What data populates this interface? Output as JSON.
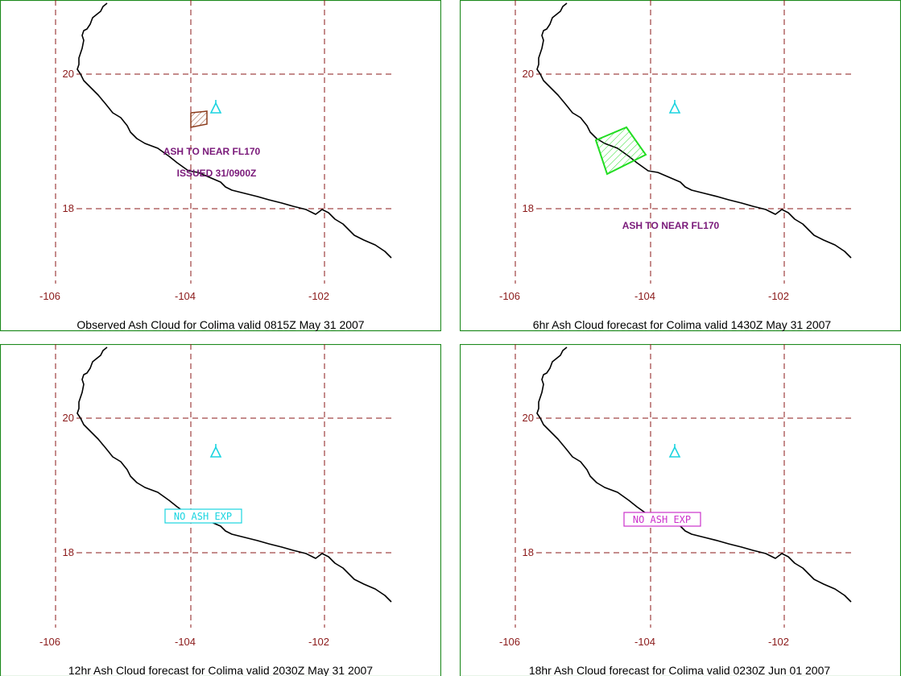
{
  "panels": [
    {
      "caption": "Observed Ash Cloud for Colima valid 0815Z May 31 2007",
      "lat_labels": [
        "20",
        "18"
      ],
      "lon_labels": [
        "-106",
        "-104",
        "-102"
      ],
      "annotations": [
        "ASH TO NEAR FL170",
        "ISSUED 31/0900Z"
      ],
      "ash_color": "#8b3a1a"
    },
    {
      "caption": "6hr Ash Cloud forecast for Colima valid 1430Z May 31 2007",
      "lat_labels": [
        "20",
        "18"
      ],
      "lon_labels": [
        "-106",
        "-104",
        "-102"
      ],
      "annotations": [
        "ASH TO NEAR FL170"
      ],
      "ash_color": "#22dd22"
    },
    {
      "caption": "12hr Ash Cloud forecast for Colima valid 2030Z May 31 2007",
      "lat_labels": [
        "20",
        "18"
      ],
      "lon_labels": [
        "-106",
        "-104",
        "-102"
      ],
      "status_box": "NO ASH EXP",
      "box_color": "#1ad4e0"
    },
    {
      "caption": "18hr Ash Cloud forecast for Colima valid 0230Z Jun 01 2007",
      "lat_labels": [
        "20",
        "18"
      ],
      "lon_labels": [
        "-106",
        "-104",
        "-102"
      ],
      "status_box": "NO ASH EXP",
      "box_color": "#cc33cc"
    }
  ],
  "icons": {
    "volcano": "volcano-icon"
  },
  "colors": {
    "grid": "#8b1a1a",
    "frame": "#1f8a1f",
    "coastline": "#000000",
    "volcano": "#1ad4e0"
  }
}
